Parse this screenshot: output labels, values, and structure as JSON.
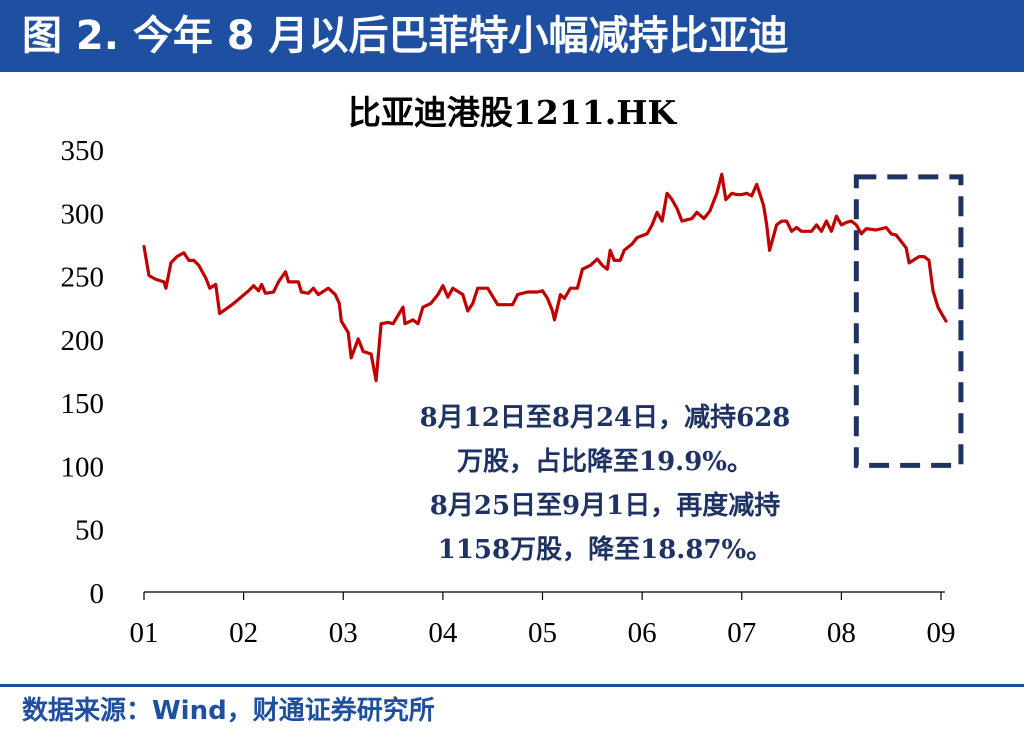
{
  "header": {
    "title": "图 2. 今年 8 月以后巴菲特小幅减持比亚迪"
  },
  "footer": {
    "source": "数据来源：Wind，财通证券研究所"
  },
  "colors": {
    "header_bg": "#1f4fa0",
    "line": "#c00000",
    "box": "#1f3264",
    "annotation": "#1f3264"
  },
  "annotation": {
    "lines": [
      "8月12日至8月24日，减持628",
      "万股，占比降至19.9%。",
      "8月25日至9月1日，再度减持",
      "1158万股，降至18.87%。"
    ]
  },
  "chart_data": {
    "type": "line",
    "title": "比亚迪港股1211.HK",
    "xlabel": "",
    "ylabel": "",
    "ylim": [
      0,
      350
    ],
    "yticks": [
      0,
      50,
      100,
      150,
      200,
      250,
      300,
      350
    ],
    "xticks": [
      "01",
      "02",
      "03",
      "04",
      "05",
      "06",
      "07",
      "08",
      "09"
    ],
    "grid": false,
    "legend": "none",
    "highlight_box": {
      "x_range": [
        8.15,
        9.2
      ],
      "y_range": [
        100,
        328
      ],
      "style": "dashed"
    },
    "series": [
      {
        "points": [
          [
            1.0,
            273
          ],
          [
            1.05,
            250
          ],
          [
            1.12,
            247
          ],
          [
            1.2,
            245
          ],
          [
            1.22,
            240
          ],
          [
            1.27,
            260
          ],
          [
            1.33,
            265
          ],
          [
            1.4,
            268
          ],
          [
            1.45,
            262
          ],
          [
            1.5,
            262
          ],
          [
            1.55,
            258
          ],
          [
            1.62,
            248
          ],
          [
            1.66,
            240
          ],
          [
            1.72,
            243
          ],
          [
            1.76,
            220
          ],
          [
            1.9,
            228
          ],
          [
            2.05,
            238
          ],
          [
            2.1,
            242
          ],
          [
            2.15,
            238
          ],
          [
            2.18,
            243
          ],
          [
            2.22,
            236
          ],
          [
            2.3,
            237
          ],
          [
            2.35,
            245
          ],
          [
            2.42,
            253
          ],
          [
            2.45,
            245
          ],
          [
            2.55,
            245
          ],
          [
            2.58,
            237
          ],
          [
            2.65,
            236
          ],
          [
            2.7,
            240
          ],
          [
            2.75,
            235
          ],
          [
            2.85,
            240
          ],
          [
            2.92,
            235
          ],
          [
            2.96,
            228
          ],
          [
            2.98,
            214
          ],
          [
            3.05,
            205
          ],
          [
            3.08,
            185
          ],
          [
            3.15,
            200
          ],
          [
            3.2,
            190
          ],
          [
            3.28,
            188
          ],
          [
            3.33,
            167
          ],
          [
            3.38,
            212
          ],
          [
            3.45,
            213
          ],
          [
            3.5,
            212
          ],
          [
            3.6,
            225
          ],
          [
            3.62,
            212
          ],
          [
            3.7,
            215
          ],
          [
            3.75,
            212
          ],
          [
            3.8,
            225
          ],
          [
            3.88,
            228
          ],
          [
            3.95,
            235
          ],
          [
            4.0,
            242
          ],
          [
            4.05,
            233
          ],
          [
            4.1,
            240
          ],
          [
            4.2,
            235
          ],
          [
            4.25,
            222
          ],
          [
            4.3,
            228
          ],
          [
            4.35,
            240
          ],
          [
            4.45,
            240
          ],
          [
            4.55,
            227
          ],
          [
            4.62,
            227
          ],
          [
            4.7,
            227
          ],
          [
            4.75,
            235
          ],
          [
            4.85,
            237
          ],
          [
            4.95,
            237
          ],
          [
            5.0,
            238
          ],
          [
            5.05,
            232
          ],
          [
            5.1,
            222
          ],
          [
            5.12,
            215
          ],
          [
            5.18,
            235
          ],
          [
            5.22,
            232
          ],
          [
            5.28,
            240
          ],
          [
            5.35,
            240
          ],
          [
            5.4,
            255
          ],
          [
            5.48,
            258
          ],
          [
            5.55,
            263
          ],
          [
            5.6,
            258
          ],
          [
            5.65,
            255
          ],
          [
            5.68,
            270
          ],
          [
            5.72,
            262
          ],
          [
            5.78,
            262
          ],
          [
            5.82,
            270
          ],
          [
            5.9,
            275
          ],
          [
            5.95,
            280
          ],
          [
            6.05,
            283
          ],
          [
            6.1,
            290
          ],
          [
            6.15,
            300
          ],
          [
            6.2,
            293
          ],
          [
            6.25,
            315
          ],
          [
            6.3,
            310
          ],
          [
            6.35,
            303
          ],
          [
            6.4,
            293
          ],
          [
            6.5,
            295
          ],
          [
            6.55,
            300
          ],
          [
            6.62,
            295
          ],
          [
            6.68,
            301
          ],
          [
            6.75,
            315
          ],
          [
            6.8,
            330
          ],
          [
            6.84,
            310
          ],
          [
            6.9,
            315
          ],
          [
            6.95,
            314
          ],
          [
            7.0,
            314
          ],
          [
            7.05,
            315
          ],
          [
            7.1,
            313
          ],
          [
            7.15,
            322
          ],
          [
            7.2,
            310
          ],
          [
            7.22,
            305
          ],
          [
            7.25,
            290
          ],
          [
            7.28,
            270
          ],
          [
            7.35,
            290
          ],
          [
            7.4,
            293
          ],
          [
            7.45,
            293
          ],
          [
            7.5,
            285
          ],
          [
            7.55,
            288
          ],
          [
            7.6,
            285
          ],
          [
            7.7,
            285
          ],
          [
            7.75,
            290
          ],
          [
            7.8,
            285
          ],
          [
            7.85,
            293
          ],
          [
            7.9,
            285
          ],
          [
            7.95,
            297
          ],
          [
            8.0,
            290
          ],
          [
            8.05,
            292
          ],
          [
            8.1,
            293
          ],
          [
            8.15,
            290
          ],
          [
            8.2,
            283
          ],
          [
            8.25,
            287
          ],
          [
            8.35,
            286
          ],
          [
            8.45,
            288
          ],
          [
            8.5,
            283
          ],
          [
            8.55,
            282
          ],
          [
            8.6,
            277
          ],
          [
            8.65,
            272
          ],
          [
            8.68,
            260
          ],
          [
            8.72,
            262
          ],
          [
            8.78,
            265
          ],
          [
            8.83,
            265
          ],
          [
            8.88,
            262
          ],
          [
            8.92,
            238
          ],
          [
            8.97,
            225
          ],
          [
            9.02,
            218
          ],
          [
            9.05,
            214
          ]
        ]
      }
    ]
  }
}
